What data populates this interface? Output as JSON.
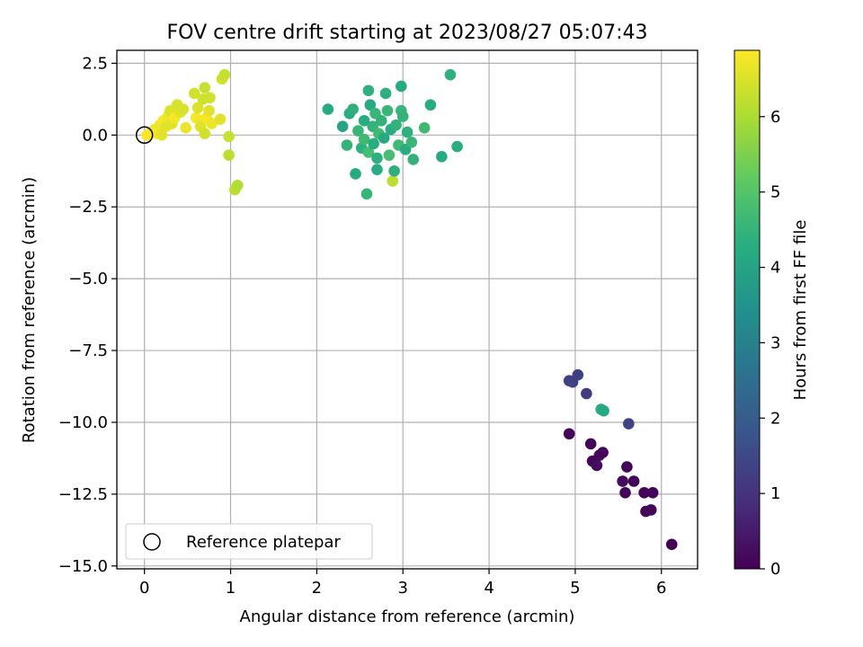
{
  "chart_data": {
    "type": "scatter",
    "title": "FOV centre drift starting at 2023/08/27 05:07:43",
    "xlabel": "Angular distance from reference (arcmin)",
    "ylabel": "Rotation from reference (arcmin)",
    "xlim": [
      -0.32,
      6.42
    ],
    "ylim": [
      -15.1,
      2.95
    ],
    "xticks": [
      0,
      1,
      2,
      3,
      4,
      5,
      6
    ],
    "xtick_labels": [
      "0",
      "1",
      "2",
      "3",
      "4",
      "5",
      "6"
    ],
    "yticks": [
      2.5,
      0.0,
      -2.5,
      -5.0,
      -7.5,
      -10.0,
      -12.5,
      -15.0
    ],
    "ytick_labels": [
      "2.5",
      "0.0",
      "−2.5",
      "−5.0",
      "−7.5",
      "−10.0",
      "−12.5",
      "−15.0"
    ],
    "grid": true,
    "colorbar": {
      "label": "Hours from first FF file",
      "colormap": "viridis",
      "range": [
        0,
        6.88
      ],
      "ticks": [
        0,
        1,
        2,
        3,
        4,
        5,
        6
      ],
      "tick_labels": [
        "0",
        "1",
        "2",
        "3",
        "4",
        "5",
        "6"
      ]
    },
    "legend": {
      "placement": "lower-left",
      "entries": [
        {
          "label": "Reference platepar",
          "marker": "hollow-circle"
        }
      ]
    },
    "reference_point": {
      "name": "Reference platepar",
      "x": 0,
      "y": 0
    },
    "points": [
      {
        "x": 0.03,
        "y": 0.0,
        "h": 6.9
      },
      {
        "x": 0.08,
        "y": 0.1,
        "h": 6.8
      },
      {
        "x": 0.12,
        "y": 0.2,
        "h": 6.7
      },
      {
        "x": 0.15,
        "y": 0.05,
        "h": 6.8
      },
      {
        "x": 0.18,
        "y": 0.35,
        "h": 6.7
      },
      {
        "x": 0.2,
        "y": 0.0,
        "h": 6.6
      },
      {
        "x": 0.22,
        "y": 0.5,
        "h": 6.8
      },
      {
        "x": 0.25,
        "y": 0.3,
        "h": 6.6
      },
      {
        "x": 0.28,
        "y": 0.7,
        "h": 6.7
      },
      {
        "x": 0.3,
        "y": 0.85,
        "h": 6.5
      },
      {
        "x": 0.32,
        "y": 0.4,
        "h": 6.6
      },
      {
        "x": 0.35,
        "y": 0.6,
        "h": 6.8
      },
      {
        "x": 0.38,
        "y": 1.05,
        "h": 6.5
      },
      {
        "x": 0.42,
        "y": 0.8,
        "h": 6.6
      },
      {
        "x": 0.45,
        "y": 0.9,
        "h": 6.5
      },
      {
        "x": 0.48,
        "y": 0.25,
        "h": 6.7
      },
      {
        "x": 0.58,
        "y": 1.45,
        "h": 6.4
      },
      {
        "x": 0.6,
        "y": 0.6,
        "h": 6.8
      },
      {
        "x": 0.62,
        "y": 0.95,
        "h": 6.5
      },
      {
        "x": 0.65,
        "y": 0.3,
        "h": 6.6
      },
      {
        "x": 0.68,
        "y": 1.25,
        "h": 6.4
      },
      {
        "x": 0.7,
        "y": 1.65,
        "h": 6.3
      },
      {
        "x": 0.72,
        "y": 0.6,
        "h": 6.8
      },
      {
        "x": 0.75,
        "y": 0.85,
        "h": 6.6
      },
      {
        "x": 0.76,
        "y": 1.3,
        "h": 6.4
      },
      {
        "x": 0.7,
        "y": 0.05,
        "h": 6.4
      },
      {
        "x": 0.78,
        "y": 0.4,
        "h": 6.7
      },
      {
        "x": 0.88,
        "y": 0.55,
        "h": 6.6
      },
      {
        "x": 0.9,
        "y": 1.95,
        "h": 6.4
      },
      {
        "x": 0.93,
        "y": 2.1,
        "h": 6.3
      },
      {
        "x": 0.98,
        "y": -0.05,
        "h": 6.3
      },
      {
        "x": 0.98,
        "y": -0.7,
        "h": 6.2
      },
      {
        "x": 1.05,
        "y": -1.9,
        "h": 6.2
      },
      {
        "x": 1.08,
        "y": -1.75,
        "h": 6.1
      },
      {
        "x": 2.13,
        "y": 0.9,
        "h": 4.2
      },
      {
        "x": 2.3,
        "y": 0.3,
        "h": 4.1
      },
      {
        "x": 2.35,
        "y": -0.35,
        "h": 4.5
      },
      {
        "x": 2.38,
        "y": 0.75,
        "h": 4.3
      },
      {
        "x": 2.42,
        "y": 0.9,
        "h": 4.4
      },
      {
        "x": 2.45,
        "y": -1.35,
        "h": 4.2
      },
      {
        "x": 2.48,
        "y": 0.15,
        "h": 4.6
      },
      {
        "x": 2.52,
        "y": -0.45,
        "h": 4.4
      },
      {
        "x": 2.55,
        "y": 0.5,
        "h": 4.3
      },
      {
        "x": 2.55,
        "y": -0.15,
        "h": 4.7
      },
      {
        "x": 2.58,
        "y": -2.05,
        "h": 4.6
      },
      {
        "x": 2.6,
        "y": 1.55,
        "h": 4.4
      },
      {
        "x": 2.6,
        "y": -0.6,
        "h": 4.8
      },
      {
        "x": 2.62,
        "y": 1.05,
        "h": 4.2
      },
      {
        "x": 2.65,
        "y": 0.3,
        "h": 4.5
      },
      {
        "x": 2.66,
        "y": -0.3,
        "h": 4.3
      },
      {
        "x": 2.68,
        "y": 0.75,
        "h": 4.6
      },
      {
        "x": 2.7,
        "y": -0.8,
        "h": 4.4
      },
      {
        "x": 2.7,
        "y": -1.2,
        "h": 4.3
      },
      {
        "x": 2.72,
        "y": 0.05,
        "h": 4.7
      },
      {
        "x": 2.75,
        "y": 0.5,
        "h": 4.5
      },
      {
        "x": 2.78,
        "y": -0.1,
        "h": 4.2
      },
      {
        "x": 2.8,
        "y": 1.45,
        "h": 4.4
      },
      {
        "x": 2.82,
        "y": 0.85,
        "h": 4.6
      },
      {
        "x": 2.84,
        "y": -0.7,
        "h": 4.8
      },
      {
        "x": 2.86,
        "y": 0.2,
        "h": 4.3
      },
      {
        "x": 2.88,
        "y": -1.6,
        "h": 6.2
      },
      {
        "x": 2.9,
        "y": -1.25,
        "h": 4.4
      },
      {
        "x": 2.92,
        "y": 0.35,
        "h": 4.5
      },
      {
        "x": 2.95,
        "y": -0.35,
        "h": 4.7
      },
      {
        "x": 2.98,
        "y": 0.85,
        "h": 4.6
      },
      {
        "x": 2.98,
        "y": 1.7,
        "h": 4.2
      },
      {
        "x": 3.0,
        "y": 0.65,
        "h": 4.5
      },
      {
        "x": 3.03,
        "y": -0.5,
        "h": 4.3
      },
      {
        "x": 3.05,
        "y": 0.1,
        "h": 4.4
      },
      {
        "x": 3.1,
        "y": -0.25,
        "h": 4.6
      },
      {
        "x": 3.12,
        "y": -0.85,
        "h": 4.5
      },
      {
        "x": 3.25,
        "y": 0.25,
        "h": 4.7
      },
      {
        "x": 3.32,
        "y": 1.05,
        "h": 4.3
      },
      {
        "x": 3.45,
        "y": -0.75,
        "h": 4.2
      },
      {
        "x": 3.55,
        "y": 2.1,
        "h": 4.4
      },
      {
        "x": 3.63,
        "y": -0.4,
        "h": 4.3
      },
      {
        "x": 4.93,
        "y": -8.55,
        "h": 1.3
      },
      {
        "x": 4.97,
        "y": -8.6,
        "h": 1.4
      },
      {
        "x": 5.03,
        "y": -8.35,
        "h": 1.3
      },
      {
        "x": 5.13,
        "y": -9.0,
        "h": 1.2
      },
      {
        "x": 5.3,
        "y": -9.55,
        "h": 4.3
      },
      {
        "x": 5.33,
        "y": -9.6,
        "h": 4.2
      },
      {
        "x": 5.62,
        "y": -10.05,
        "h": 1.4
      },
      {
        "x": 4.93,
        "y": -10.4,
        "h": 0.1
      },
      {
        "x": 5.18,
        "y": -10.75,
        "h": 0.1
      },
      {
        "x": 5.28,
        "y": -11.15,
        "h": 0.2
      },
      {
        "x": 5.32,
        "y": -11.05,
        "h": 0.1
      },
      {
        "x": 5.2,
        "y": -11.35,
        "h": 0.1
      },
      {
        "x": 5.25,
        "y": -11.5,
        "h": 0.2
      },
      {
        "x": 5.6,
        "y": -11.55,
        "h": 0.1
      },
      {
        "x": 5.68,
        "y": -12.05,
        "h": 0.1
      },
      {
        "x": 5.55,
        "y": -12.05,
        "h": 0.2
      },
      {
        "x": 5.58,
        "y": -12.45,
        "h": 0.1
      },
      {
        "x": 5.8,
        "y": -12.45,
        "h": 0.1
      },
      {
        "x": 5.9,
        "y": -12.45,
        "h": 0.1
      },
      {
        "x": 5.82,
        "y": -13.1,
        "h": 0.1
      },
      {
        "x": 5.88,
        "y": -13.05,
        "h": 0.1
      },
      {
        "x": 6.12,
        "y": -14.25,
        "h": 0.0
      }
    ]
  }
}
